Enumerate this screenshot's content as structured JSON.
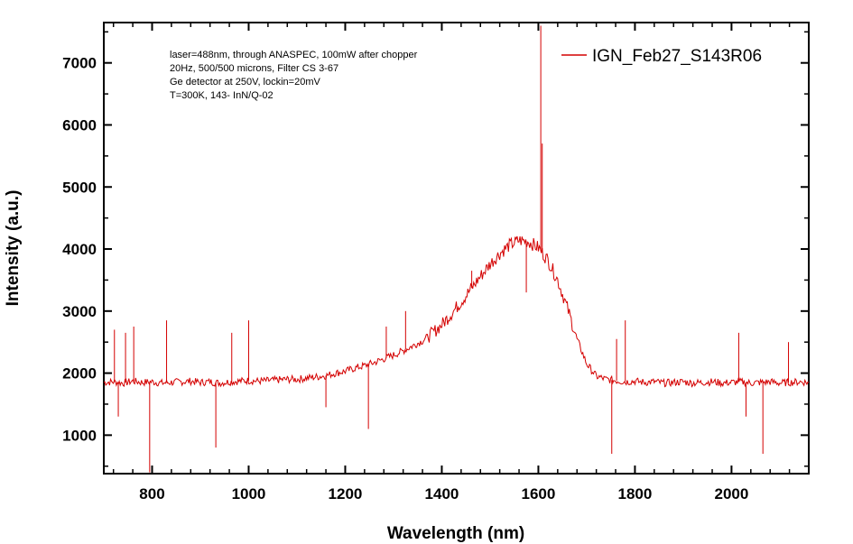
{
  "chart_data": {
    "type": "line",
    "title": "",
    "xlabel": "Wavelength (nm)",
    "ylabel": "Intensity (a.u.)",
    "xlim": [
      700,
      2160
    ],
    "ylim": [
      380,
      7650
    ],
    "x_ticks": [
      800,
      1000,
      1200,
      1400,
      1600,
      1800,
      2000
    ],
    "y_ticks": [
      1000,
      2000,
      3000,
      4000,
      5000,
      6000,
      7000
    ],
    "grid": false,
    "legend_position": "top-right",
    "annotations": [
      "laser=488nm, through ANASPEC, 100mW after chopper",
      "20Hz, 500/500 microns, Filter CS 3-67",
      "Ge detector at 250V, lockin=20mV",
      "T=300K, 143- InN/Q-02"
    ],
    "series": [
      {
        "name": "IGN_Feb27_S143R06",
        "color": "#d40000",
        "x": [
          700,
          720,
          740,
          760,
          780,
          800,
          820,
          840,
          860,
          880,
          900,
          920,
          940,
          960,
          980,
          1000,
          1020,
          1040,
          1060,
          1080,
          1100,
          1120,
          1140,
          1160,
          1180,
          1200,
          1220,
          1240,
          1260,
          1280,
          1300,
          1320,
          1340,
          1360,
          1380,
          1400,
          1420,
          1440,
          1460,
          1480,
          1500,
          1520,
          1540,
          1560,
          1580,
          1600,
          1620,
          1640,
          1660,
          1680,
          1700,
          1720,
          1740,
          1760,
          1780,
          1800,
          1820,
          1840,
          1860,
          1880,
          1900,
          1920,
          1940,
          1960,
          1980,
          2000,
          2020,
          2040,
          2060,
          2080,
          2100,
          2120,
          2140,
          2160
        ],
        "y": [
          1850,
          1860,
          1840,
          1870,
          1850,
          1860,
          1840,
          1850,
          1860,
          1870,
          1850,
          1860,
          1840,
          1860,
          1870,
          1880,
          1870,
          1880,
          1890,
          1900,
          1900,
          1920,
          1940,
          1960,
          2000,
          2030,
          2080,
          2120,
          2170,
          2230,
          2290,
          2360,
          2440,
          2520,
          2640,
          2780,
          2960,
          3150,
          3350,
          3560,
          3760,
          3930,
          4060,
          4140,
          4120,
          4020,
          3820,
          3500,
          3050,
          2550,
          2150,
          1950,
          1900,
          1880,
          1860,
          1870,
          1850,
          1860,
          1840,
          1850,
          1860,
          1840,
          1850,
          1860,
          1840,
          1850,
          1860,
          1840,
          1850,
          1860,
          1840,
          1850,
          1860,
          1850
        ],
        "spikes": [
          {
            "x": 722,
            "y": 2700
          },
          {
            "x": 730,
            "y": 1300
          },
          {
            "x": 745,
            "y": 2650
          },
          {
            "x": 762,
            "y": 2750
          },
          {
            "x": 795,
            "y": 400
          },
          {
            "x": 830,
            "y": 2850
          },
          {
            "x": 932,
            "y": 800
          },
          {
            "x": 965,
            "y": 2650
          },
          {
            "x": 1000,
            "y": 2850
          },
          {
            "x": 1160,
            "y": 1450
          },
          {
            "x": 1248,
            "y": 1100
          },
          {
            "x": 1285,
            "y": 2750
          },
          {
            "x": 1325,
            "y": 3000
          },
          {
            "x": 1462,
            "y": 3650
          },
          {
            "x": 1575,
            "y": 3300
          },
          {
            "x": 1605,
            "y": 7600
          },
          {
            "x": 1608,
            "y": 5700
          },
          {
            "x": 1752,
            "y": 700
          },
          {
            "x": 1762,
            "y": 2550
          },
          {
            "x": 1780,
            "y": 2850
          },
          {
            "x": 2015,
            "y": 2650
          },
          {
            "x": 2030,
            "y": 1300
          },
          {
            "x": 2065,
            "y": 700
          },
          {
            "x": 2118,
            "y": 2500
          }
        ]
      }
    ]
  }
}
